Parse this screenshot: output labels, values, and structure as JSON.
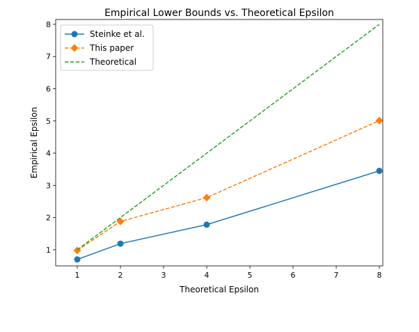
{
  "chart_data": {
    "type": "line",
    "title": "Empirical Lower Bounds vs. Theoretical Epsilon",
    "xlabel": "Theoretical Epsilon",
    "ylabel": "Empirical Epsilon",
    "xlim": [
      0.5,
      8.08
    ],
    "ylim": [
      0.5,
      8.15
    ],
    "xticks": [
      1,
      2,
      3,
      4,
      5,
      6,
      7,
      8
    ],
    "yticks": [
      1,
      2,
      3,
      4,
      5,
      6,
      7,
      8
    ],
    "grid": false,
    "legend_position": "top-left",
    "x": [
      1,
      2,
      4,
      8
    ],
    "series": [
      {
        "name": "Steinke et al.",
        "values": [
          0.7,
          1.19,
          1.78,
          3.45
        ],
        "color": "#1f77b4",
        "linestyle": "solid",
        "marker": "circle"
      },
      {
        "name": "This paper",
        "values": [
          0.98,
          1.88,
          2.62,
          5.01
        ],
        "color": "#ff7f0e",
        "linestyle": "dashed",
        "marker": "diamond"
      },
      {
        "name": "Theoretical",
        "values": [
          1,
          2,
          4,
          8
        ],
        "color": "#2ca02c",
        "linestyle": "dashed",
        "marker": "none"
      }
    ]
  }
}
